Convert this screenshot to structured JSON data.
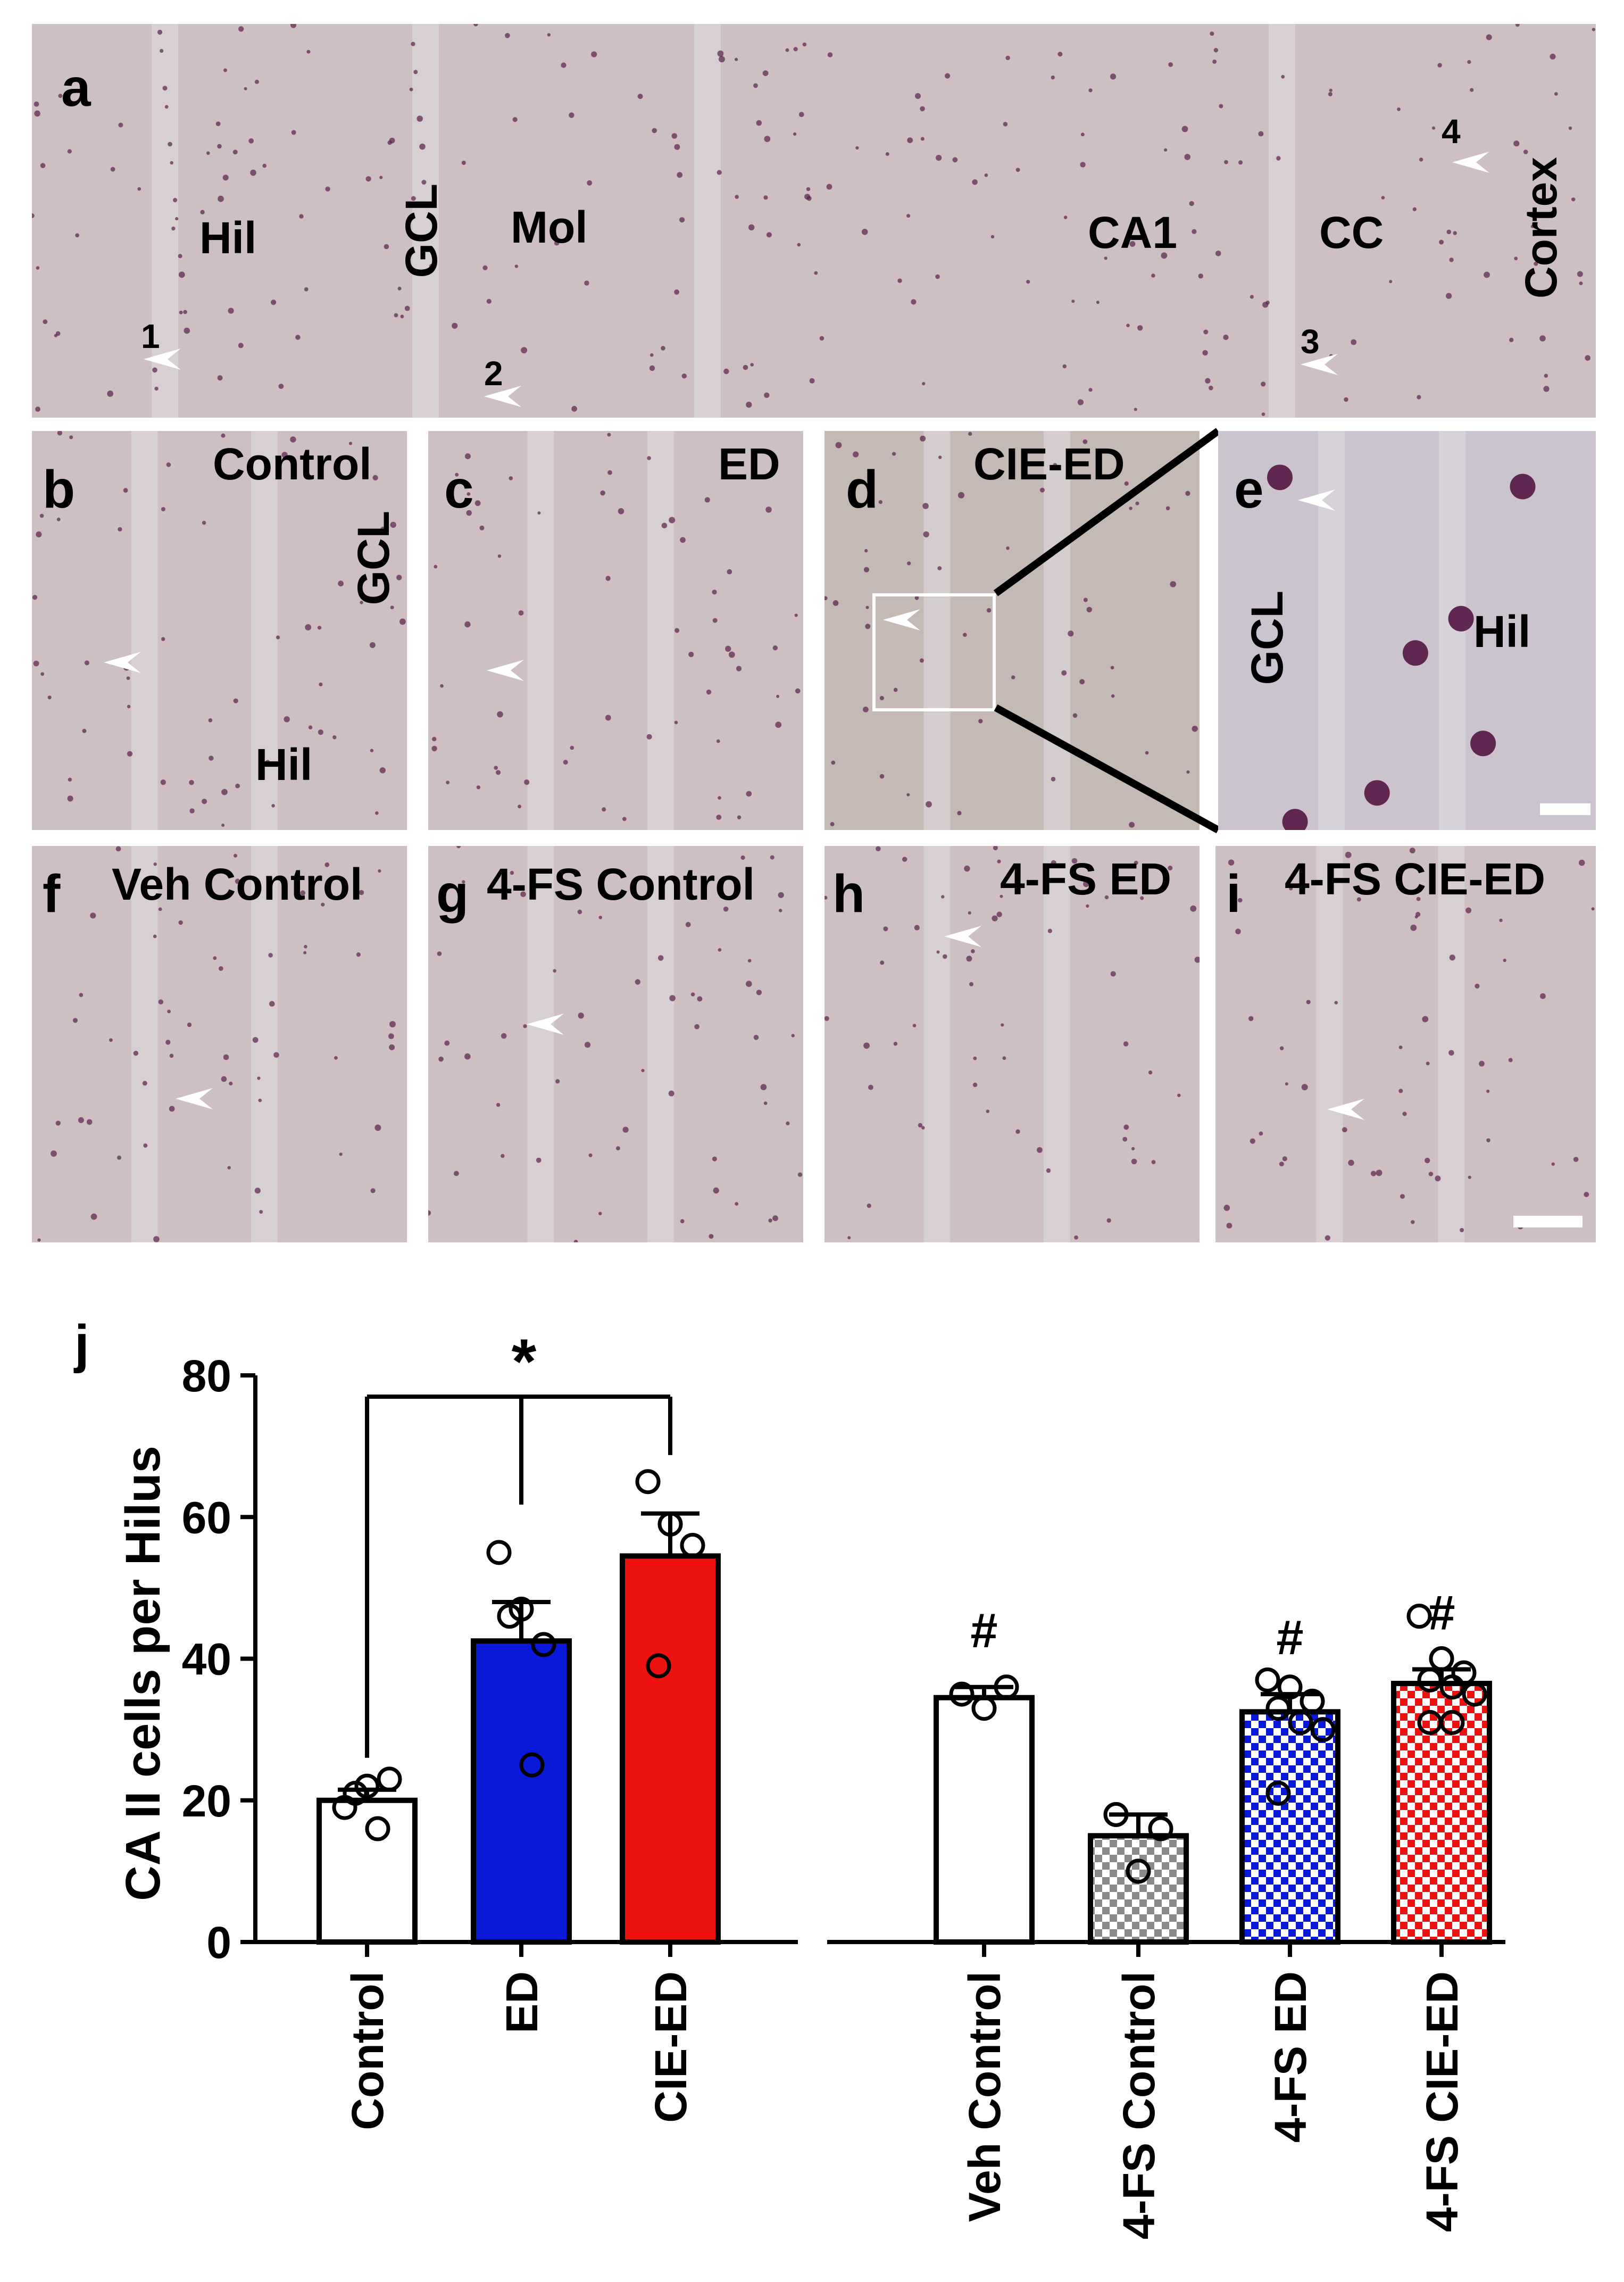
{
  "panels": {
    "a": {
      "letter": "a",
      "regions": [
        "Hil",
        "GCL",
        "Mol",
        "CA1",
        "CC",
        "Cortex"
      ],
      "markers": [
        "1",
        "2",
        "3",
        "4"
      ]
    },
    "b": {
      "letter": "b",
      "title": "Control",
      "regions": [
        "GCL",
        "Hil"
      ]
    },
    "c": {
      "letter": "c",
      "title": "ED"
    },
    "d": {
      "letter": "d",
      "title": "CIE-ED"
    },
    "e": {
      "letter": "e",
      "regions": [
        "GCL",
        "Hil"
      ]
    },
    "f": {
      "letter": "f",
      "title": "Veh Control"
    },
    "g": {
      "letter": "g",
      "title": "4-FS Control"
    },
    "h": {
      "letter": "h",
      "title": "4-FS ED"
    },
    "i": {
      "letter": "i",
      "title": "4-FS CIE-ED"
    }
  },
  "colors": {
    "tissue": "#cdbfc2",
    "cell": "#5a1f4a",
    "arrow": "#ffffff",
    "blue": "#0a18d8",
    "red": "#ee1111",
    "gray": "#8a8a8a"
  },
  "chart_data": {
    "type": "bar",
    "panel_letter": "j",
    "ylabel": "CA II cells per Hilus",
    "ylim": [
      0,
      80
    ],
    "yticks": [
      0,
      20,
      40,
      60,
      80
    ],
    "groups": [
      {
        "bars": [
          {
            "label": "Control",
            "mean": 20,
            "sem": 1.5,
            "fill": "white",
            "points": [
              19,
              22,
              23,
              21,
              16
            ]
          },
          {
            "label": "ED",
            "mean": 42.5,
            "sem": 5.5,
            "fill": "blue",
            "points": [
              55,
              47,
              42,
              46,
              25
            ]
          },
          {
            "label": "CIE-ED",
            "mean": 54.5,
            "sem": 6,
            "fill": "red",
            "points": [
              65,
              59,
              56,
              39
            ]
          }
        ],
        "significance": {
          "symbol": "*",
          "compare": [
            "Control",
            "ED",
            "CIE-ED"
          ]
        }
      },
      {
        "bars": [
          {
            "label": "Veh Control",
            "mean": 34.5,
            "sem": 1.5,
            "fill": "white",
            "annotation": "#",
            "points": [
              35,
              33,
              36
            ]
          },
          {
            "label": "4-FS Control",
            "mean": 15,
            "sem": 3,
            "fill": "gray-check",
            "points": [
              18,
              10,
              16
            ]
          },
          {
            "label": "4-FS ED",
            "mean": 32.5,
            "sem": 2.5,
            "fill": "blue-check",
            "annotation": "#",
            "points": [
              37,
              36,
              34,
              33,
              31,
              30,
              21
            ]
          },
          {
            "label": "4-FS CIE-ED",
            "mean": 36.5,
            "sem": 2,
            "fill": "red-check",
            "annotation": "#",
            "points": [
              46,
              40,
              38,
              37,
              36,
              35,
              31,
              31
            ]
          }
        ]
      }
    ]
  }
}
